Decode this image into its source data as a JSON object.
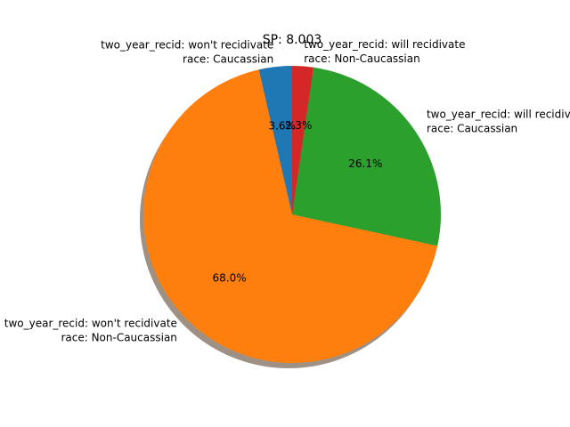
{
  "chart_data": {
    "type": "pie",
    "title": "SP: 8.003",
    "shadow": true,
    "start_angle_deg": 90,
    "direction": "counterclockwise",
    "slices": [
      {
        "label_lines": [
          "two_year_recid: won't recidivate",
          "race: Caucassian"
        ],
        "value": 3.6,
        "pct_label": "3.6%",
        "color": "#1f77b4"
      },
      {
        "label_lines": [
          "two_year_recid: won't recidivate",
          "race: Non-Caucassian"
        ],
        "value": 68.0,
        "pct_label": "68.0%",
        "color": "#ff7f0e"
      },
      {
        "label_lines": [
          "two_year_recid: will recidivate",
          "race: Caucassian"
        ],
        "value": 26.1,
        "pct_label": "26.1%",
        "color": "#2ca02c"
      },
      {
        "label_lines": [
          "two_year_recid: will recidivate",
          "race: Non-Caucassian"
        ],
        "value": 2.3,
        "pct_label": "2.3%",
        "color": "#d62728"
      }
    ]
  }
}
